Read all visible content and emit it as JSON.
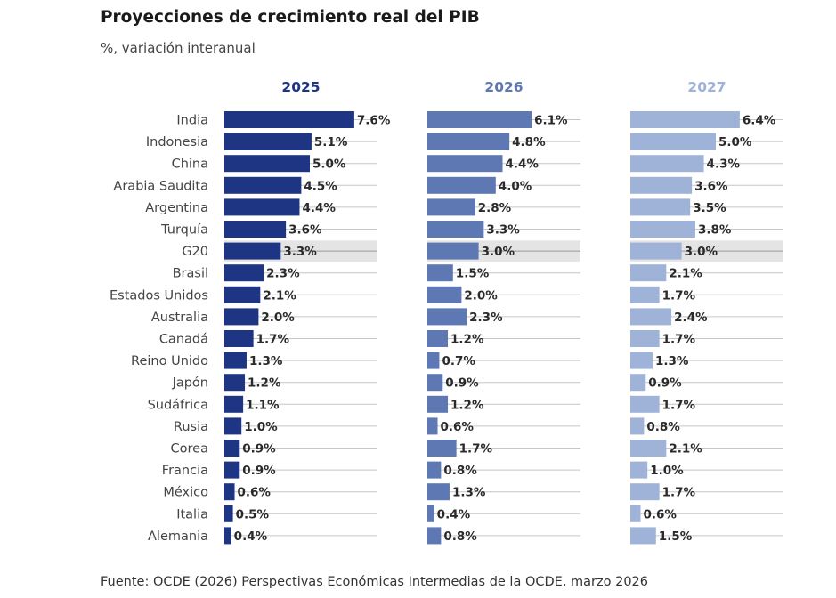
{
  "header": {
    "title": "Proyecciones de crecimiento real del PIB",
    "subtitle": "%, variación interanual"
  },
  "footer": {
    "source": "Fuente: OCDE (2026) Perspectivas Económicas Intermedias de la OCDE, marzo 2026"
  },
  "chart_data": {
    "type": "bar",
    "orientation": "horizontal",
    "title": "Proyecciones de crecimiento real del PIB",
    "subtitle": "%, variación interanual",
    "highlight_category": "G20",
    "categories": [
      "India",
      "Indonesia",
      "China",
      "Arabia Saudita",
      "Argentina",
      "Turquía",
      "G20",
      "Brasil",
      "Estados Unidos",
      "Australia",
      "Canadá",
      "Reino Unido",
      "Japón",
      "Sudáfrica",
      "Rusia",
      "Corea",
      "Francia",
      "México",
      "Italia",
      "Alemania"
    ],
    "series": [
      {
        "name": "2025",
        "color": "#1e3584",
        "values": [
          7.6,
          5.1,
          5.0,
          4.5,
          4.4,
          3.6,
          3.3,
          2.3,
          2.1,
          2.0,
          1.7,
          1.3,
          1.2,
          1.1,
          1.0,
          0.9,
          0.9,
          0.6,
          0.5,
          0.4
        ],
        "labels": [
          "7.6%",
          "5.1%",
          "5.0%",
          "4.5%",
          "4.4%",
          "3.6%",
          "3.3%",
          "2.3%",
          "2.1%",
          "2.0%",
          "1.7%",
          "1.3%",
          "1.2%",
          "1.1%",
          "1.0%",
          "0.9%",
          "0.9%",
          "0.6%",
          "0.5%",
          "0.4%"
        ]
      },
      {
        "name": "2026",
        "color": "#5e78b4",
        "values": [
          6.1,
          4.8,
          4.4,
          4.0,
          2.8,
          3.3,
          3.0,
          1.5,
          2.0,
          2.3,
          1.2,
          0.7,
          0.9,
          1.2,
          0.6,
          1.7,
          0.8,
          1.3,
          0.4,
          0.8
        ],
        "labels": [
          "6.1%",
          "4.8%",
          "4.4%",
          "4.0%",
          "2.8%",
          "3.3%",
          "3.0%",
          "1.5%",
          "2.0%",
          "2.3%",
          "1.2%",
          "0.7%",
          "0.9%",
          "1.2%",
          "0.6%",
          "1.7%",
          "0.8%",
          "1.3%",
          "0.4%",
          "0.8%"
        ]
      },
      {
        "name": "2027",
        "color": "#9fb3d8",
        "values": [
          6.4,
          5.0,
          4.3,
          3.6,
          3.5,
          3.8,
          3.0,
          2.1,
          1.7,
          2.4,
          1.7,
          1.3,
          0.9,
          1.7,
          0.8,
          2.1,
          1.0,
          1.7,
          0.6,
          1.5
        ],
        "labels": [
          "6.4%",
          "5.0%",
          "4.3%",
          "3.6%",
          "3.5%",
          "3.8%",
          "3.0%",
          "2.1%",
          "1.7%",
          "2.4%",
          "1.7%",
          "1.3%",
          "0.9%",
          "1.7%",
          "0.8%",
          "2.1%",
          "1.0%",
          "1.7%",
          "0.6%",
          "1.5%"
        ]
      }
    ],
    "xlim": [
      0,
      9
    ],
    "grid": "horizontal row lines",
    "legend": "panel headers"
  }
}
